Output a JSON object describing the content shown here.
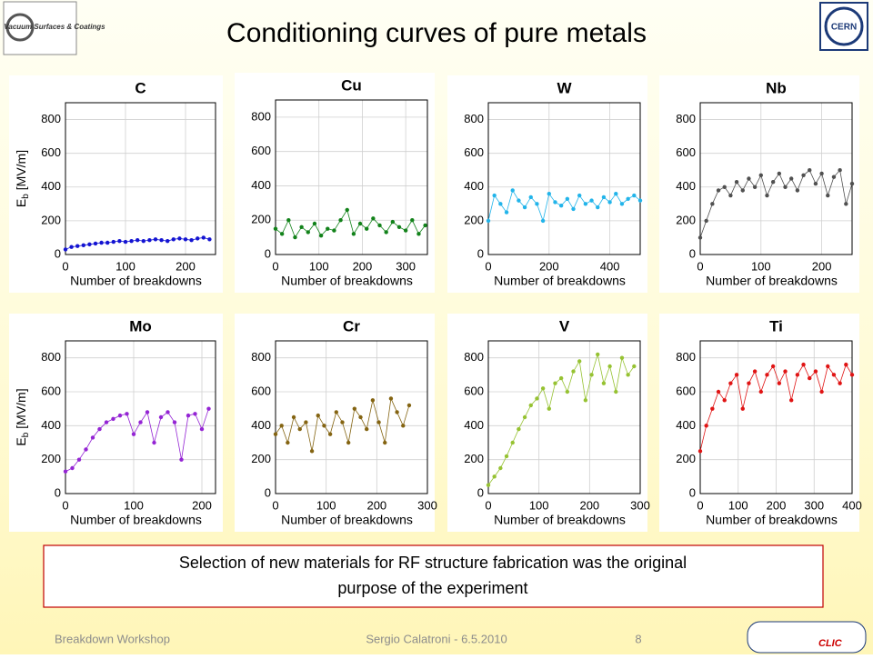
{
  "header": {
    "title": "Conditioning curves of pure metals",
    "logo_left": "Vacuum Surfaces & Coatings",
    "logo_right": "CERN"
  },
  "note": [
    "Selection of new materials for RF structure fabrication was the original",
    "purpose of the experiment"
  ],
  "footer": {
    "left": "Breakdown Workshop",
    "center": "Sergio Calatroni - 6.5.2010",
    "page": "8",
    "logo": "CLIC"
  },
  "chart_data": [
    {
      "type": "line",
      "title": "C",
      "xlabel": "Number of breakdowns",
      "ylabel": [
        "E",
        "b",
        "[MV/m]"
      ],
      "xlim": [
        0,
        250
      ],
      "xticks": [
        0,
        100,
        200
      ],
      "ylim": [
        0,
        900
      ],
      "yticks": [
        0,
        200,
        400,
        600,
        800
      ],
      "grid": true,
      "series": [
        {
          "name": "C",
          "color": "#1414d2",
          "x": [
            0,
            10,
            20,
            30,
            40,
            50,
            60,
            70,
            80,
            90,
            100,
            110,
            120,
            130,
            140,
            150,
            160,
            170,
            180,
            190,
            200,
            210,
            220,
            230,
            240
          ],
          "values": [
            30,
            45,
            50,
            55,
            60,
            65,
            70,
            70,
            75,
            80,
            75,
            80,
            85,
            80,
            85,
            90,
            85,
            80,
            90,
            95,
            90,
            85,
            95,
            100,
            90
          ]
        }
      ]
    },
    {
      "type": "line",
      "title": "Cu",
      "xlabel": "Number of breakdowns",
      "xlim": [
        0,
        350
      ],
      "xticks": [
        0,
        100,
        200,
        300
      ],
      "ylim": [
        0,
        900
      ],
      "yticks": [
        0,
        200,
        400,
        600,
        800
      ],
      "grid": true,
      "series": [
        {
          "name": "Cu",
          "color": "#12821a",
          "x": [
            0,
            15,
            30,
            45,
            60,
            75,
            90,
            105,
            120,
            135,
            150,
            165,
            180,
            195,
            210,
            225,
            240,
            255,
            270,
            285,
            300,
            315,
            330,
            345
          ],
          "values": [
            150,
            120,
            200,
            100,
            160,
            130,
            180,
            110,
            150,
            140,
            200,
            260,
            120,
            180,
            150,
            210,
            170,
            130,
            190,
            160,
            140,
            200,
            120,
            170
          ]
        }
      ]
    },
    {
      "type": "line",
      "title": "W",
      "xlabel": "Number of breakdowns",
      "xlim": [
        0,
        500
      ],
      "xticks": [
        0,
        200,
        400
      ],
      "ylim": [
        0,
        900
      ],
      "yticks": [
        0,
        200,
        400,
        600,
        800
      ],
      "grid": true,
      "series": [
        {
          "name": "W",
          "color": "#22b4ea",
          "x": [
            0,
            20,
            40,
            60,
            80,
            100,
            120,
            140,
            160,
            180,
            200,
            220,
            240,
            260,
            280,
            300,
            320,
            340,
            360,
            380,
            400,
            420,
            440,
            460,
            480,
            500
          ],
          "values": [
            200,
            350,
            300,
            250,
            380,
            320,
            280,
            340,
            300,
            200,
            360,
            310,
            290,
            330,
            270,
            350,
            300,
            320,
            280,
            340,
            310,
            360,
            300,
            330,
            350,
            320
          ]
        }
      ]
    },
    {
      "type": "line",
      "title": "Nb",
      "xlabel": "Number of breakdowns",
      "xlim": [
        0,
        250
      ],
      "xticks": [
        0,
        100,
        200
      ],
      "ylim": [
        0,
        900
      ],
      "yticks": [
        0,
        200,
        400,
        600,
        800
      ],
      "grid": true,
      "series": [
        {
          "name": "Nb",
          "color": "#505050",
          "x": [
            0,
            10,
            20,
            30,
            40,
            50,
            60,
            70,
            80,
            90,
            100,
            110,
            120,
            130,
            140,
            150,
            160,
            170,
            180,
            190,
            200,
            210,
            220,
            230,
            240,
            250
          ],
          "values": [
            100,
            200,
            300,
            380,
            400,
            350,
            430,
            380,
            450,
            400,
            470,
            350,
            430,
            480,
            400,
            450,
            380,
            470,
            500,
            420,
            480,
            350,
            460,
            500,
            300,
            420
          ]
        }
      ]
    },
    {
      "type": "line",
      "title": "Mo",
      "xlabel": "Number of breakdowns",
      "ylabel": [
        "E",
        "b",
        "[MV/m]"
      ],
      "xlim": [
        0,
        220
      ],
      "xticks": [
        0,
        100,
        200
      ],
      "ylim": [
        0,
        900
      ],
      "yticks": [
        0,
        200,
        400,
        600,
        800
      ],
      "grid": true,
      "series": [
        {
          "name": "Mo",
          "color": "#9424d4",
          "x": [
            0,
            10,
            20,
            30,
            40,
            50,
            60,
            70,
            80,
            90,
            100,
            110,
            120,
            130,
            140,
            150,
            160,
            170,
            180,
            190,
            200,
            210
          ],
          "values": [
            130,
            150,
            200,
            260,
            330,
            380,
            420,
            440,
            460,
            470,
            350,
            420,
            480,
            300,
            450,
            480,
            420,
            200,
            460,
            470,
            380,
            500
          ]
        }
      ]
    },
    {
      "type": "line",
      "title": "Cr",
      "xlabel": "Number of breakdowns",
      "xlim": [
        0,
        300
      ],
      "xticks": [
        0,
        100,
        200,
        300
      ],
      "ylim": [
        0,
        900
      ],
      "yticks": [
        0,
        200,
        400,
        600,
        800
      ],
      "grid": true,
      "series": [
        {
          "name": "Cr",
          "color": "#846412",
          "x": [
            0,
            12,
            24,
            36,
            48,
            60,
            72,
            84,
            96,
            108,
            120,
            132,
            144,
            156,
            168,
            180,
            192,
            204,
            216,
            228,
            240,
            252,
            264
          ],
          "values": [
            350,
            400,
            300,
            450,
            380,
            420,
            250,
            460,
            400,
            350,
            480,
            420,
            300,
            500,
            450,
            380,
            550,
            420,
            300,
            560,
            480,
            400,
            520
          ]
        }
      ]
    },
    {
      "type": "line",
      "title": "V",
      "xlabel": "Number of breakdowns",
      "xlim": [
        0,
        300
      ],
      "xticks": [
        0,
        100,
        200,
        300
      ],
      "ylim": [
        0,
        900
      ],
      "yticks": [
        0,
        200,
        400,
        600,
        800
      ],
      "grid": true,
      "series": [
        {
          "name": "V",
          "color": "#96c232",
          "x": [
            0,
            12,
            24,
            36,
            48,
            60,
            72,
            84,
            96,
            108,
            120,
            132,
            144,
            156,
            168,
            180,
            192,
            204,
            216,
            228,
            240,
            252,
            264,
            276,
            288
          ],
          "values": [
            50,
            100,
            150,
            220,
            300,
            380,
            450,
            520,
            560,
            620,
            500,
            650,
            680,
            600,
            720,
            780,
            550,
            700,
            820,
            650,
            750,
            600,
            800,
            700,
            750
          ]
        }
      ]
    },
    {
      "type": "line",
      "title": "Ti",
      "xlabel": "Number of breakdowns",
      "xlim": [
        0,
        400
      ],
      "xticks": [
        0,
        100,
        200,
        300,
        400
      ],
      "ylim": [
        0,
        900
      ],
      "yticks": [
        0,
        200,
        400,
        600,
        800
      ],
      "grid": true,
      "series": [
        {
          "name": "Ti",
          "color": "#e01414",
          "x": [
            0,
            16,
            32,
            48,
            64,
            80,
            96,
            112,
            128,
            144,
            160,
            176,
            192,
            208,
            224,
            240,
            256,
            272,
            288,
            304,
            320,
            336,
            352,
            368,
            384,
            400
          ],
          "values": [
            250,
            400,
            500,
            600,
            550,
            650,
            700,
            500,
            650,
            720,
            600,
            700,
            750,
            650,
            720,
            550,
            700,
            760,
            680,
            720,
            600,
            750,
            700,
            650,
            760,
            700
          ]
        }
      ]
    }
  ]
}
